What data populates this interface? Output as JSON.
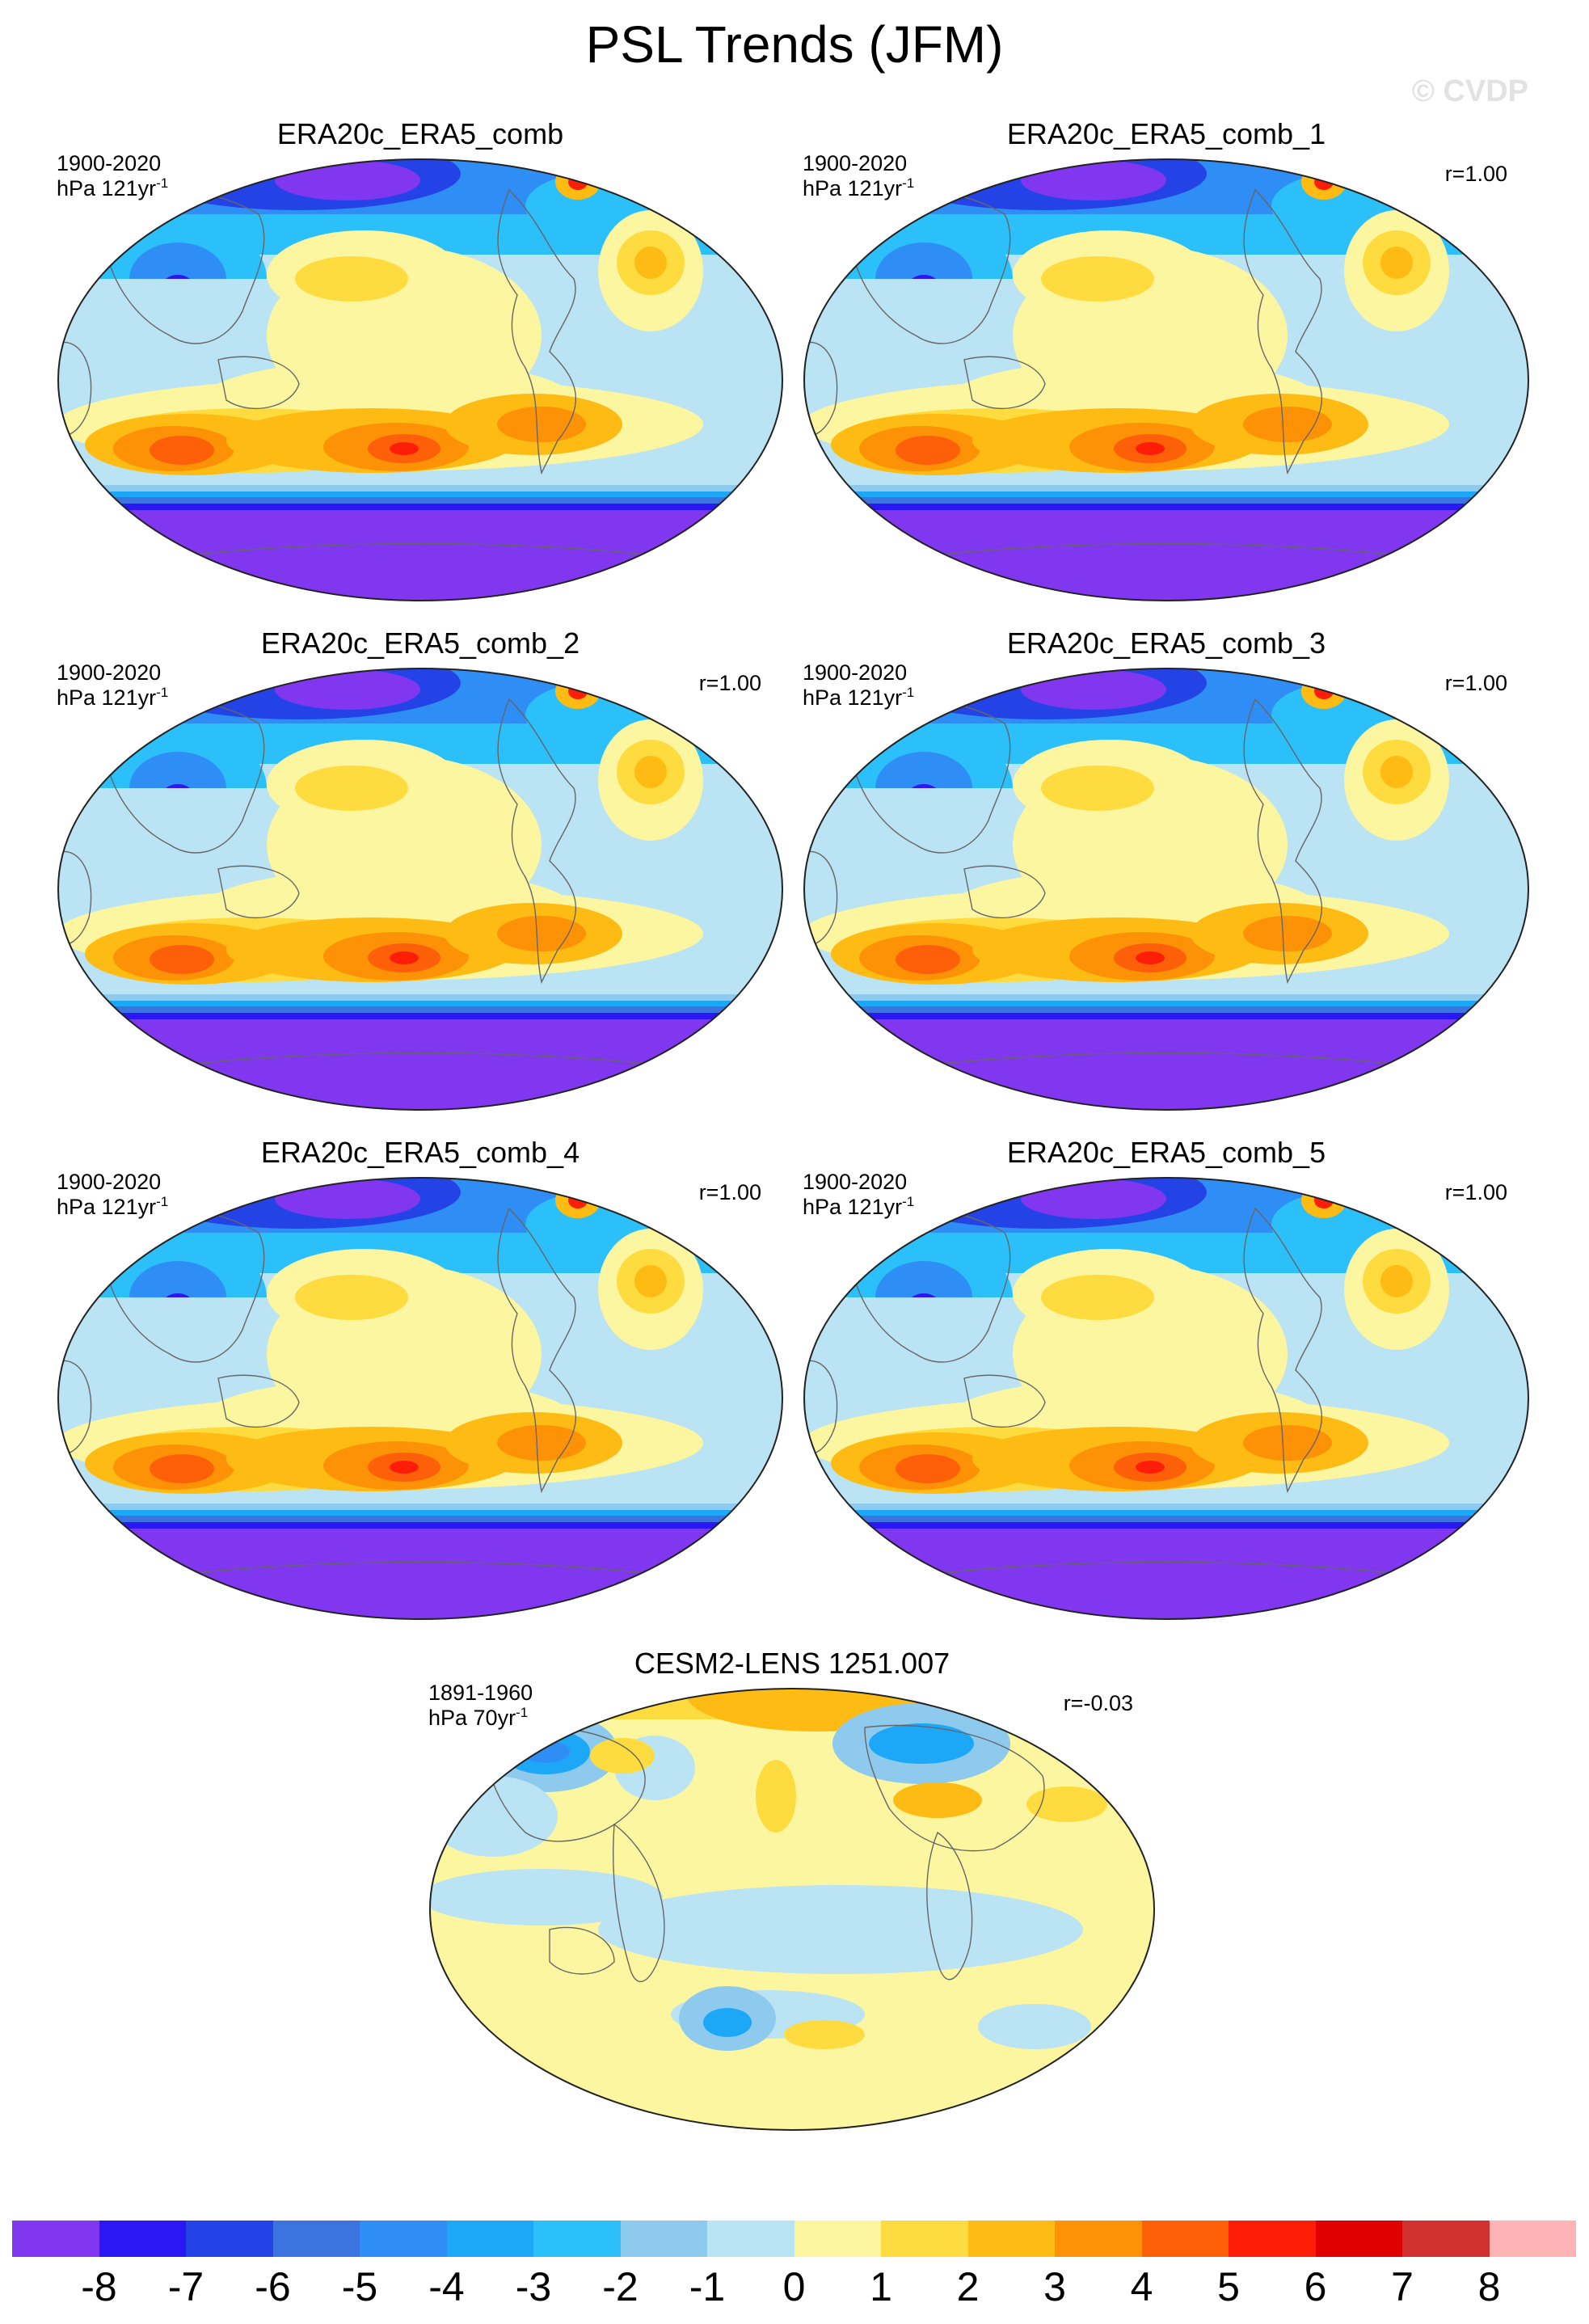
{
  "title": "PSL Trends (JFM)",
  "watermark": "© CVDP",
  "panels": [
    {
      "title": "ERA20c_ERA5_comb",
      "period": "1900-2020",
      "units": "hPa 121yr",
      "units_sup": "-1",
      "corr": "",
      "variant": "obs"
    },
    {
      "title": "ERA20c_ERA5_comb_1",
      "period": "1900-2020",
      "units": "hPa 121yr",
      "units_sup": "-1",
      "corr": "r=1.00",
      "variant": "obs"
    },
    {
      "title": "ERA20c_ERA5_comb_2",
      "period": "1900-2020",
      "units": "hPa 121yr",
      "units_sup": "-1",
      "corr": "r=1.00",
      "variant": "obs"
    },
    {
      "title": "ERA20c_ERA5_comb_3",
      "period": "1900-2020",
      "units": "hPa 121yr",
      "units_sup": "-1",
      "corr": "r=1.00",
      "variant": "obs"
    },
    {
      "title": "ERA20c_ERA5_comb_4",
      "period": "1900-2020",
      "units": "hPa 121yr",
      "units_sup": "-1",
      "corr": "r=1.00",
      "variant": "obs"
    },
    {
      "title": "ERA20c_ERA5_comb_5",
      "period": "1900-2020",
      "units": "hPa 121yr",
      "units_sup": "-1",
      "corr": "r=1.00",
      "variant": "obs"
    },
    {
      "title": "CESM2-LENS 1251.007",
      "period": "1891-1960",
      "units": "hPa 70yr",
      "units_sup": "-1",
      "corr": "r=-0.03",
      "variant": "model"
    }
  ],
  "colorbar": {
    "colors": [
      "#8136f0",
      "#2a17f3",
      "#2343e6",
      "#3b74e0",
      "#2f8ef5",
      "#1da7f7",
      "#2cc0fa",
      "#8ecaee",
      "#bae3f4",
      "#fdf6a0",
      "#fedb3e",
      "#fdbb13",
      "#fd9207",
      "#fd6008",
      "#fe1e08",
      "#e00000",
      "#d13131",
      "#feb4b4"
    ],
    "labels": [
      "-8",
      "-7",
      "-6",
      "-5",
      "-4",
      "-3",
      "-2",
      "-1",
      "0",
      "1",
      "2",
      "3",
      "4",
      "5",
      "6",
      "7",
      "8"
    ]
  }
}
